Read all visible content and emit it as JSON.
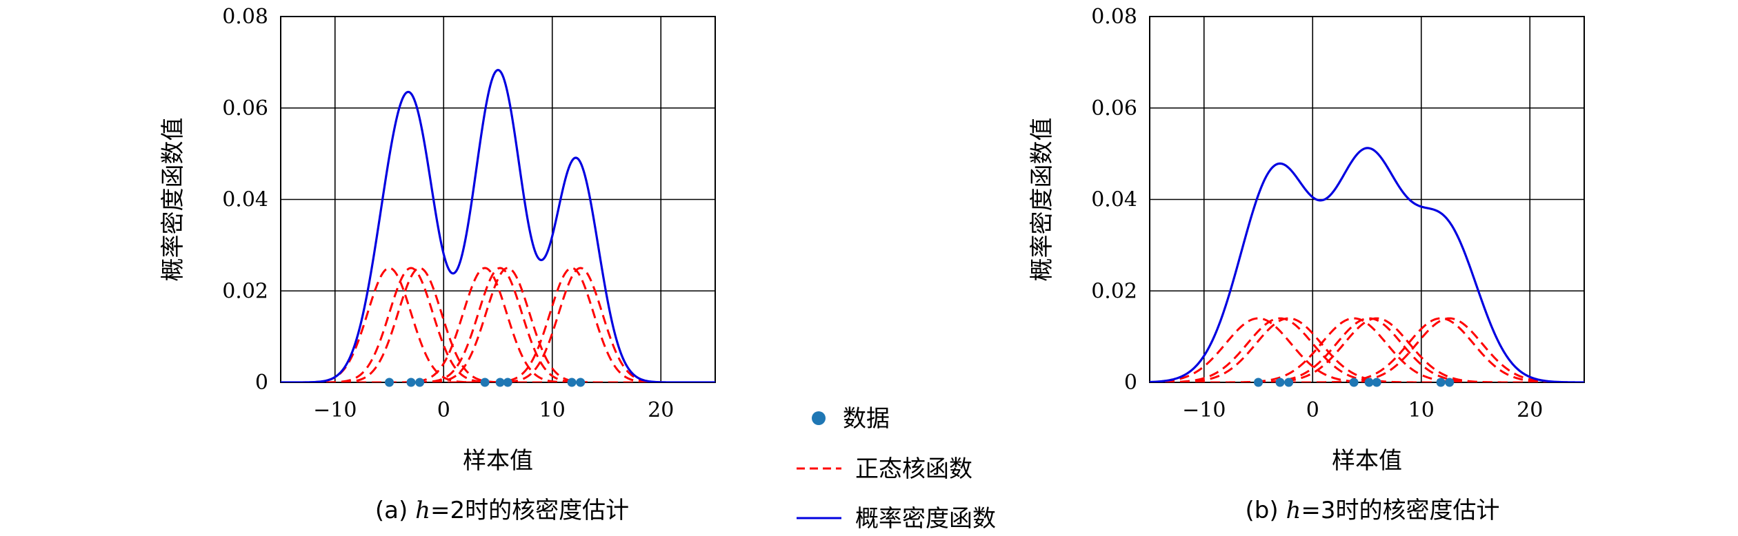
{
  "colors": {
    "kernel": "#ff0000",
    "density": "#0000e0",
    "data_point": "#1f77b4"
  },
  "legend": {
    "data_label": "数据",
    "kernel_label": "正态核函数",
    "density_label": "概率密度函数"
  },
  "chart_data": [
    {
      "type": "line",
      "caption_prefix": "(a) ",
      "caption_h": "h",
      "caption_rest": "=2时的核密度估计",
      "bandwidth": 2,
      "xlabel": "样本值",
      "ylabel": "概率密度函数值",
      "xlim": [
        -15,
        25
      ],
      "ylim": [
        0,
        0.08
      ],
      "xticks": [
        -10,
        0,
        10,
        20
      ],
      "xtick_labels": [
        "−10",
        "0",
        "10",
        "20"
      ],
      "yticks": [
        0,
        0.02,
        0.04,
        0.06,
        0.08
      ],
      "ytick_labels": [
        "0",
        "0.02",
        "0.04",
        "0.06",
        "0.08"
      ],
      "grid": true,
      "data_points": [
        -5,
        -3,
        -2.2,
        3.8,
        5.2,
        5.9,
        11.8,
        12.6
      ],
      "kernel_peak": 0.025,
      "density_peaks": [
        {
          "x": -3.3,
          "y": 0.065
        },
        {
          "x": 4.9,
          "y": 0.069
        },
        {
          "x": 12.3,
          "y": 0.049
        }
      ],
      "density_valleys": [
        {
          "x": 0.8,
          "y": 0.024
        },
        {
          "x": 9.0,
          "y": 0.025
        }
      ]
    },
    {
      "type": "line",
      "caption_prefix": "(b) ",
      "caption_h": "h",
      "caption_rest": "=3时的核密度估计",
      "bandwidth": 3,
      "xlabel": "样本值",
      "ylabel": "概率密度函数值",
      "xlim": [
        -15,
        25
      ],
      "ylim": [
        0,
        0.08
      ],
      "xticks": [
        -10,
        0,
        10,
        20
      ],
      "xtick_labels": [
        "−10",
        "0",
        "10",
        "20"
      ],
      "yticks": [
        0,
        0.02,
        0.04,
        0.06,
        0.08
      ],
      "ytick_labels": [
        "0",
        "0.02",
        "0.04",
        "0.06",
        "0.08"
      ],
      "grid": true,
      "data_points": [
        -5,
        -3,
        -2.2,
        3.8,
        5.2,
        5.9,
        11.8,
        12.6
      ],
      "kernel_peak": 0.014,
      "density_peaks": [
        {
          "x": -2.5,
          "y": 0.045
        },
        {
          "x": 5.0,
          "y": 0.048
        }
      ],
      "density_valleys": [
        {
          "x": 0.8,
          "y": 0.0435
        }
      ]
    }
  ]
}
